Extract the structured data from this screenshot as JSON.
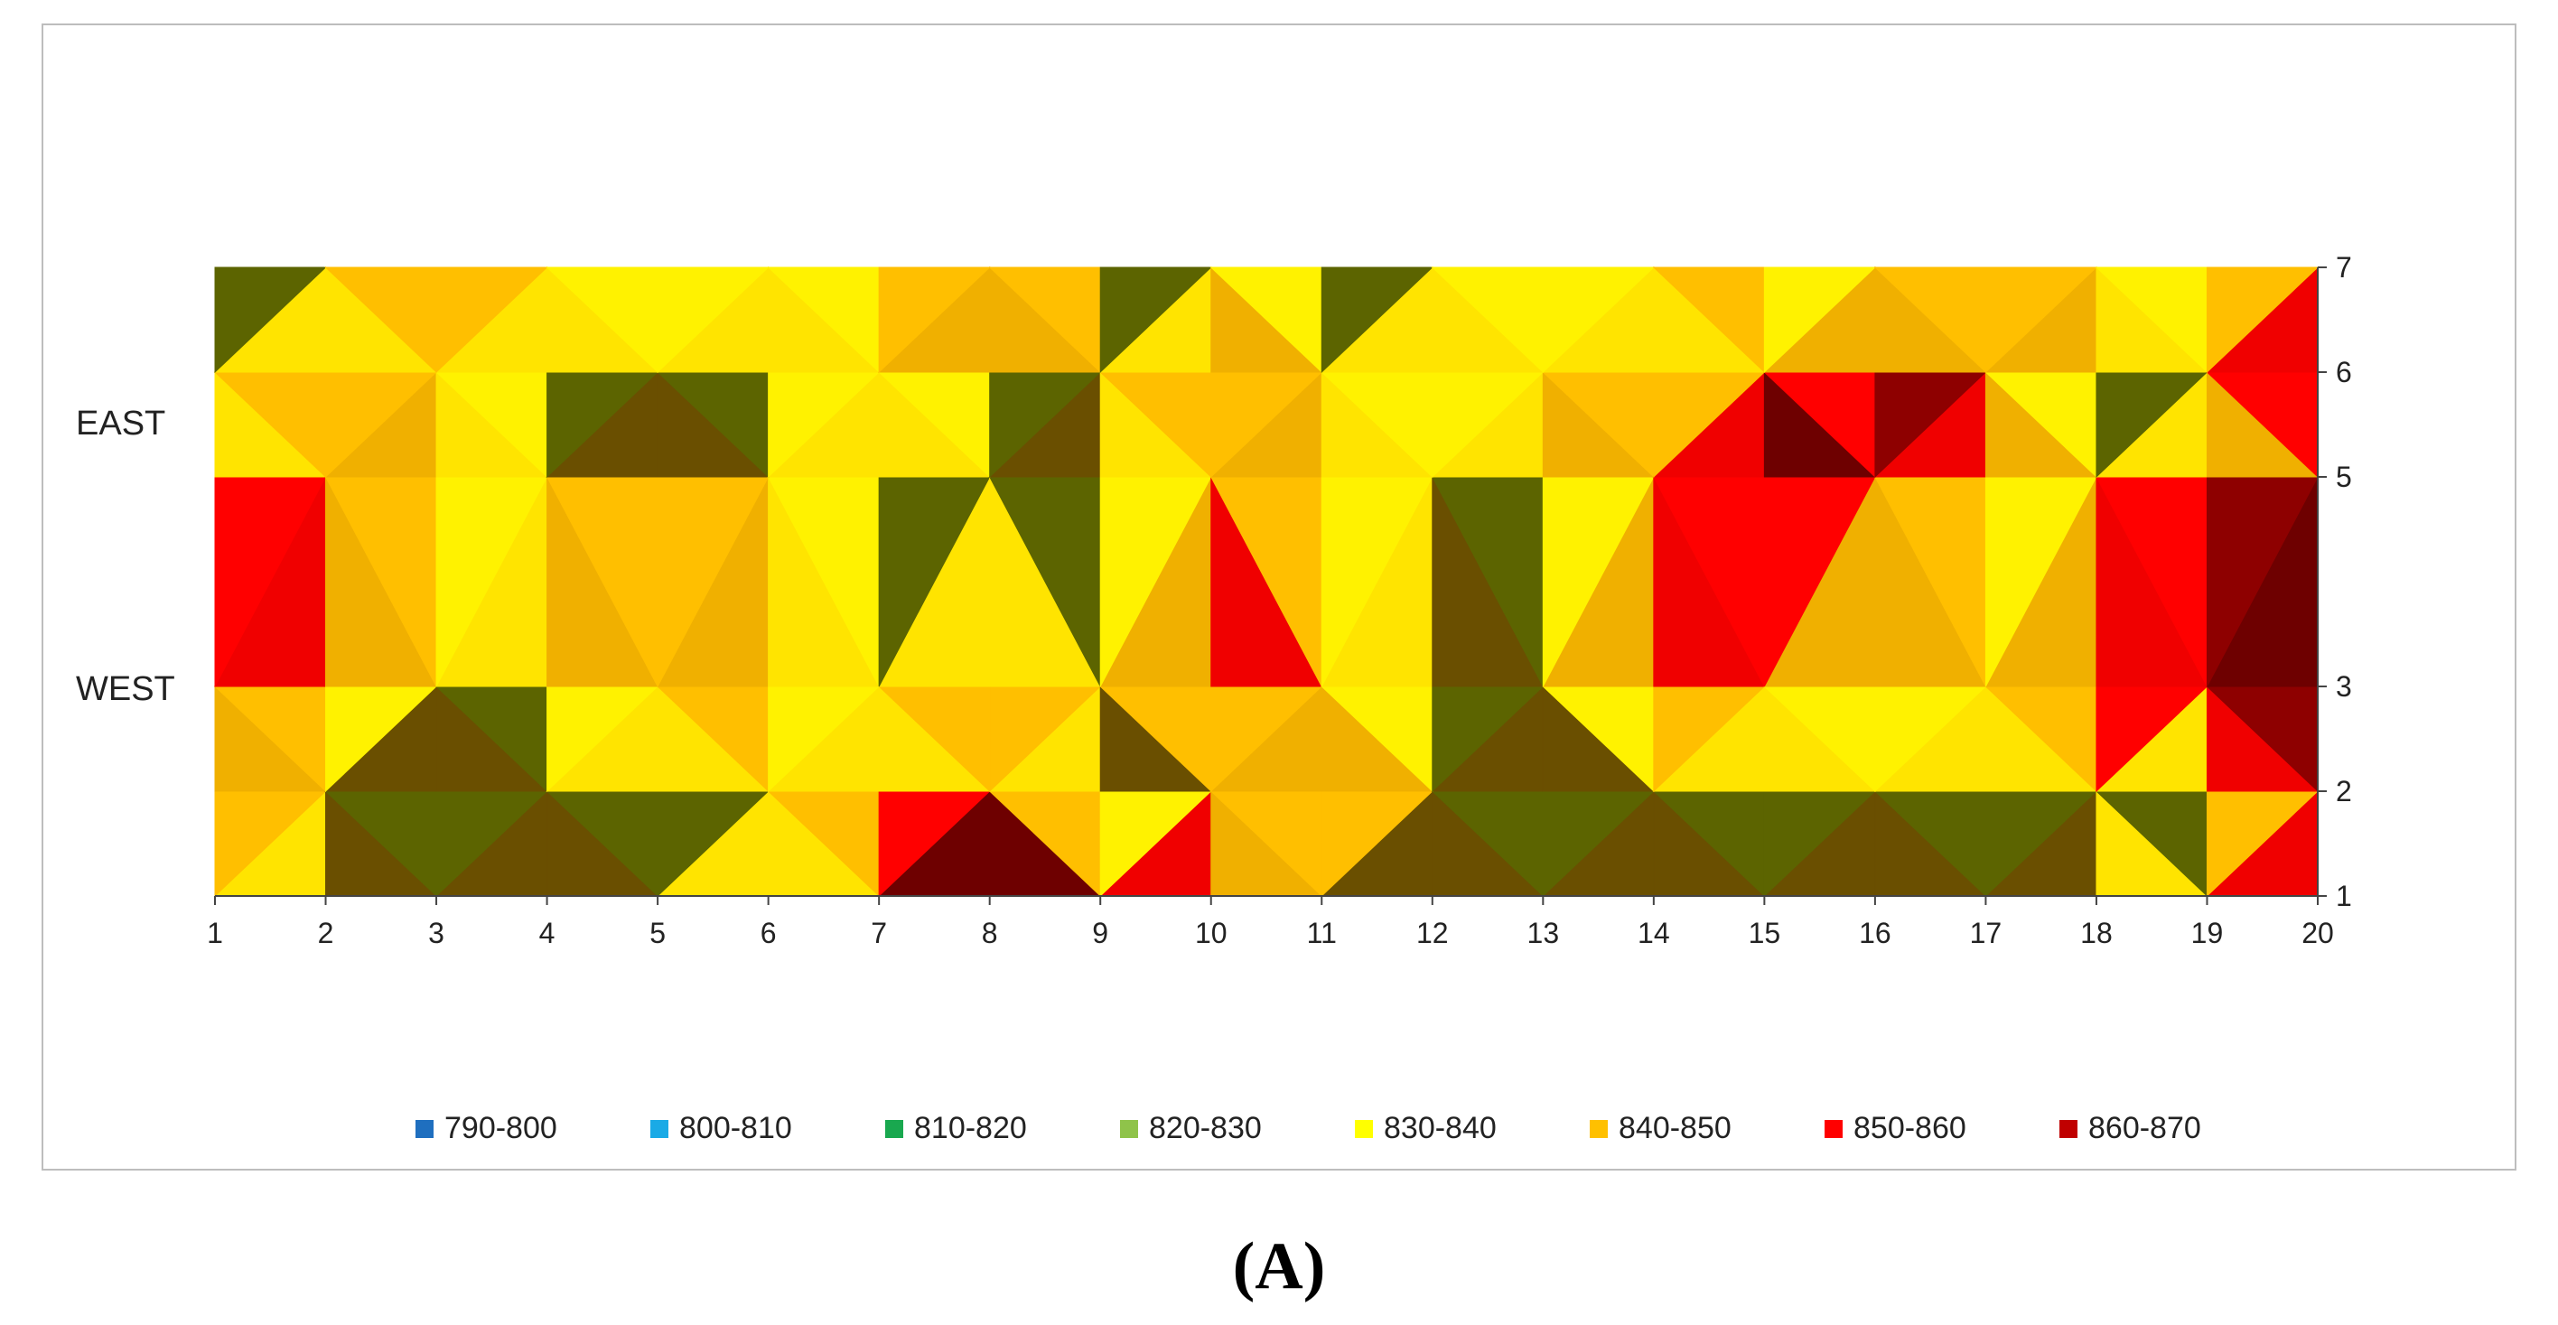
{
  "panel_label": "(A)",
  "row_labels": [
    "EAST",
    "WEST"
  ],
  "chart_data": {
    "type": "heatmap",
    "subtype": "filled-contour",
    "x_ticks": [
      "1",
      "2",
      "3",
      "4",
      "5",
      "6",
      "7",
      "8",
      "9",
      "10",
      "11",
      "12",
      "13",
      "14",
      "15",
      "16",
      "17",
      "18",
      "19",
      "20"
    ],
    "y_ticks": [
      "1",
      "2",
      "3",
      "5",
      "6",
      "7"
    ],
    "y_axis_side": "right",
    "xlim": [
      1,
      20
    ],
    "ylim": [
      1,
      7
    ],
    "grid": false,
    "legend_position": "bottom",
    "legend": [
      {
        "label": "790-800",
        "color": "#1f6fbf"
      },
      {
        "label": "800-810",
        "color": "#1aaae6"
      },
      {
        "label": "810-820",
        "color": "#19a84f"
      },
      {
        "label": "820-830",
        "color": "#8fc34a"
      },
      {
        "label": "830-840",
        "color": "#ffff00"
      },
      {
        "label": "840-850",
        "color": "#ffc000"
      },
      {
        "label": "850-860",
        "color": "#ff0000"
      },
      {
        "label": "860-870",
        "color": "#c00000"
      }
    ],
    "rows_y": [
      1,
      2,
      3,
      5,
      6,
      7
    ],
    "values": [
      [
        842,
        835,
        828,
        822,
        834,
        826,
        858,
        866,
        856,
        861,
        841,
        824,
        836,
        825,
        822,
        822,
        826,
        841,
        843,
        864
      ],
      [
        858,
        825,
        822,
        824,
        818,
        832,
        836,
        858,
        819,
        833,
        864,
        824,
        826,
        822,
        823,
        824,
        835,
        822,
        822,
        862
      ],
      [
        864,
        858,
        835,
        823,
        866,
        841,
        824,
        845,
        828,
        862,
        852,
        831,
        822,
        863,
        846,
        835,
        837,
        864,
        866,
        856
      ],
      [
        837,
        855,
        843,
        835,
        826,
        833,
        833,
        823,
        823,
        845,
        837,
        829,
        837,
        860,
        866,
        864,
        842,
        828,
        856,
        858
      ],
      [
        826,
        844,
        836,
        828,
        826,
        826,
        834,
        836,
        826,
        858,
        845,
        832,
        844,
        823,
        851,
        854,
        862,
        822,
        833,
        862
      ],
      [
        833,
        822,
        866,
        840,
        837,
        844,
        836,
        867,
        829,
        824,
        822,
        822,
        836,
        838,
        835,
        829,
        844,
        836,
        833,
        861
      ]
    ]
  }
}
